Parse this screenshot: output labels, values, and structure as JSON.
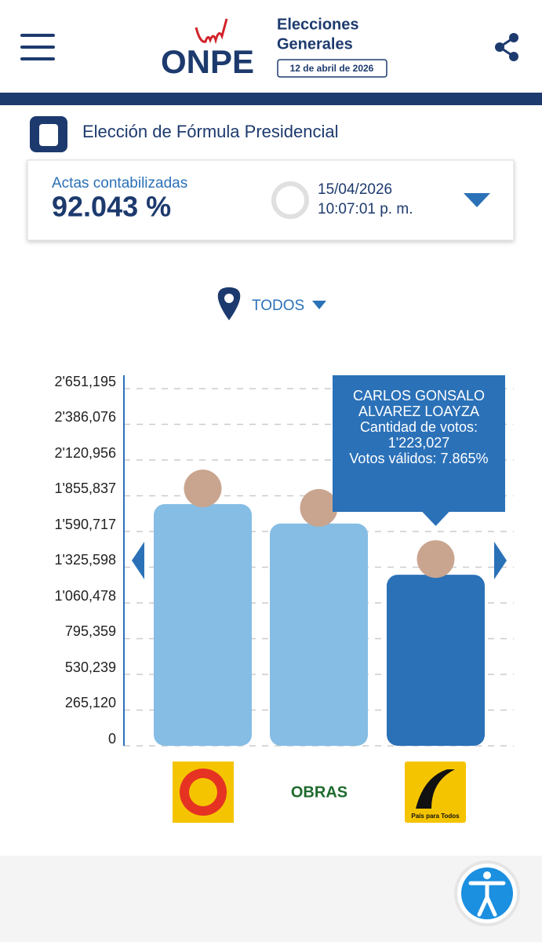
{
  "header": {
    "brand": "ONPE",
    "title_line1": "Elecciones",
    "title_line2": "Generales",
    "date": "12 de abril de 2026"
  },
  "section_title": "Elección de Fórmula Presidencial",
  "summary": {
    "label": "Actas contabilizadas",
    "value": "92.043 %",
    "date": "15/04/2026",
    "time": "10:07:01 p. m."
  },
  "location_filter": "TODOS",
  "chart_data": {
    "type": "bar",
    "categories": [
      null,
      null,
      null
    ],
    "values": [
      1747000,
      1603000,
      1223027
    ],
    "value_labels": [
      null,
      null,
      "1'223,027"
    ],
    "colors": [
      "#85bde4",
      "#85bde4",
      "#2b71b8"
    ],
    "ylim": [
      0,
      2651195
    ],
    "yticks": [
      0,
      {
        "value": 265120,
        "label": "265,120"
      },
      {
        "value": 530239,
        "label": "530,239"
      },
      {
        "value": 795359,
        "label": "795,359"
      },
      {
        "value": 1060478,
        "label": "1'060,478"
      },
      {
        "value": 1325598,
        "label": "1'325,598"
      },
      {
        "value": 1590717,
        "label": "1'590,717"
      },
      {
        "value": 1855837,
        "label": "1'855,837"
      },
      {
        "value": 2120956,
        "label": "2'120,956"
      },
      {
        "value": 2386076,
        "label": "2'386,076"
      },
      {
        "value": 2651195,
        "label": "2'651,195"
      }
    ],
    "grid": true,
    "tooltip": {
      "index": 2,
      "name": "CARLOS GONSALO ALVAREZ LOAYZA",
      "votes_label": "Cantidad de votos:",
      "valid_label": "Votos válidos:",
      "valid_share": "7.865%"
    }
  },
  "logos": {
    "obras": "OBRAS",
    "pais_para_todos": "País para Todos"
  }
}
